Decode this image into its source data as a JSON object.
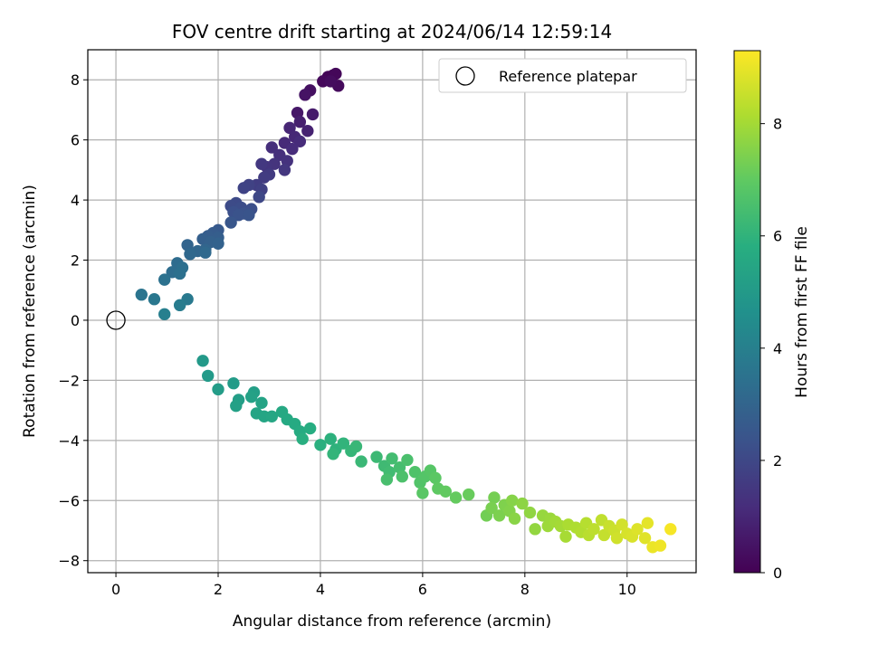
{
  "chart_data": {
    "type": "scatter",
    "title": "FOV centre drift starting at 2024/06/14 12:59:14",
    "xlabel": "Angular distance from reference (arcmin)",
    "ylabel": "Rotation from reference (arcmin)",
    "xlim": [
      -0.55,
      11.35
    ],
    "ylim": [
      -8.4,
      9.0
    ],
    "xticks": [
      0,
      2,
      4,
      6,
      8,
      10
    ],
    "yticks": [
      -8,
      -6,
      -4,
      -2,
      0,
      2,
      4,
      6,
      8
    ],
    "xtick_labels": [
      "0",
      "2",
      "4",
      "6",
      "8",
      "10"
    ],
    "ytick_labels": [
      "−8",
      "−6",
      "−4",
      "−2",
      "0",
      "2",
      "4",
      "6",
      "8"
    ],
    "grid": true,
    "legend": {
      "placement": "top-right",
      "entries": [
        {
          "label": "Reference platepar",
          "marker": "open-circle"
        }
      ]
    },
    "reference_point": {
      "x": 0,
      "y": 0
    },
    "colorbar": {
      "label": "Hours from first FF file",
      "colormap": "viridis",
      "range": [
        0,
        9.3
      ],
      "ticks": [
        0,
        2,
        4,
        6,
        8
      ],
      "tick_labels": [
        "0",
        "2",
        "4",
        "6",
        "8"
      ]
    },
    "series": [
      {
        "points": [
          {
            "x": 4.25,
            "y": 8.15,
            "t": 0.05
          },
          {
            "x": 4.15,
            "y": 8.1,
            "t": 0.1
          },
          {
            "x": 4.3,
            "y": 8.2,
            "t": 0.15
          },
          {
            "x": 4.05,
            "y": 7.95,
            "t": 0.2
          },
          {
            "x": 4.35,
            "y": 7.8,
            "t": 0.25
          },
          {
            "x": 4.2,
            "y": 7.95,
            "t": 0.3
          },
          {
            "x": 3.8,
            "y": 7.65,
            "t": 0.4
          },
          {
            "x": 3.7,
            "y": 7.5,
            "t": 0.5
          },
          {
            "x": 3.55,
            "y": 6.9,
            "t": 0.6
          },
          {
            "x": 3.85,
            "y": 6.85,
            "t": 0.7
          },
          {
            "x": 3.6,
            "y": 6.6,
            "t": 0.8
          },
          {
            "x": 3.75,
            "y": 6.3,
            "t": 0.9
          },
          {
            "x": 3.4,
            "y": 6.4,
            "t": 1.0
          },
          {
            "x": 3.5,
            "y": 6.1,
            "t": 1.05
          },
          {
            "x": 3.3,
            "y": 5.9,
            "t": 1.1
          },
          {
            "x": 3.6,
            "y": 5.95,
            "t": 1.15
          },
          {
            "x": 3.45,
            "y": 5.7,
            "t": 1.2
          },
          {
            "x": 3.05,
            "y": 5.75,
            "t": 1.25
          },
          {
            "x": 3.2,
            "y": 5.5,
            "t": 1.3
          },
          {
            "x": 3.35,
            "y": 5.3,
            "t": 1.35
          },
          {
            "x": 3.1,
            "y": 5.2,
            "t": 1.4
          },
          {
            "x": 2.95,
            "y": 5.1,
            "t": 1.45
          },
          {
            "x": 3.3,
            "y": 5.0,
            "t": 1.5
          },
          {
            "x": 2.85,
            "y": 5.2,
            "t": 1.55
          },
          {
            "x": 3.0,
            "y": 4.85,
            "t": 1.6
          },
          {
            "x": 2.9,
            "y": 4.75,
            "t": 1.65
          },
          {
            "x": 2.75,
            "y": 4.5,
            "t": 1.7
          },
          {
            "x": 2.85,
            "y": 4.35,
            "t": 1.8
          },
          {
            "x": 2.6,
            "y": 4.5,
            "t": 1.85
          },
          {
            "x": 2.5,
            "y": 4.4,
            "t": 1.9
          },
          {
            "x": 2.8,
            "y": 4.1,
            "t": 2.0
          },
          {
            "x": 2.35,
            "y": 3.9,
            "t": 2.1
          },
          {
            "x": 2.25,
            "y": 3.8,
            "t": 2.15
          },
          {
            "x": 2.45,
            "y": 3.75,
            "t": 2.2
          },
          {
            "x": 2.65,
            "y": 3.7,
            "t": 2.25
          },
          {
            "x": 2.3,
            "y": 3.6,
            "t": 2.3
          },
          {
            "x": 2.5,
            "y": 3.55,
            "t": 2.35
          },
          {
            "x": 2.4,
            "y": 3.5,
            "t": 2.4
          },
          {
            "x": 2.6,
            "y": 3.5,
            "t": 2.45
          },
          {
            "x": 2.25,
            "y": 3.25,
            "t": 2.5
          },
          {
            "x": 2.0,
            "y": 3.0,
            "t": 2.6
          },
          {
            "x": 1.9,
            "y": 2.9,
            "t": 2.7
          },
          {
            "x": 1.8,
            "y": 2.8,
            "t": 2.75
          },
          {
            "x": 2.0,
            "y": 2.75,
            "t": 2.8
          },
          {
            "x": 1.7,
            "y": 2.7,
            "t": 2.85
          },
          {
            "x": 1.85,
            "y": 2.6,
            "t": 2.9
          },
          {
            "x": 2.0,
            "y": 2.55,
            "t": 2.95
          },
          {
            "x": 1.4,
            "y": 2.5,
            "t": 3.0
          },
          {
            "x": 1.75,
            "y": 2.35,
            "t": 3.05
          },
          {
            "x": 1.6,
            "y": 2.3,
            "t": 3.1
          },
          {
            "x": 1.45,
            "y": 2.2,
            "t": 3.15
          },
          {
            "x": 1.75,
            "y": 2.25,
            "t": 3.2
          },
          {
            "x": 1.2,
            "y": 1.9,
            "t": 3.3
          },
          {
            "x": 1.1,
            "y": 1.6,
            "t": 3.35
          },
          {
            "x": 1.3,
            "y": 1.75,
            "t": 3.4
          },
          {
            "x": 1.25,
            "y": 1.55,
            "t": 3.45
          },
          {
            "x": 0.95,
            "y": 1.35,
            "t": 3.5
          },
          {
            "x": 0.5,
            "y": 0.85,
            "t": 3.6
          },
          {
            "x": 0.75,
            "y": 0.7,
            "t": 3.7
          },
          {
            "x": 1.4,
            "y": 0.7,
            "t": 3.8
          },
          {
            "x": 1.25,
            "y": 0.5,
            "t": 3.9
          },
          {
            "x": 0.95,
            "y": 0.2,
            "t": 4.0
          },
          {
            "x": 1.7,
            "y": -1.35,
            "t": 5.0
          },
          {
            "x": 1.8,
            "y": -1.85,
            "t": 5.05
          },
          {
            "x": 2.3,
            "y": -2.1,
            "t": 5.1
          },
          {
            "x": 2.0,
            "y": -2.3,
            "t": 5.15
          },
          {
            "x": 2.4,
            "y": -2.65,
            "t": 5.2
          },
          {
            "x": 2.7,
            "y": -2.4,
            "t": 5.25
          },
          {
            "x": 2.35,
            "y": -2.85,
            "t": 5.3
          },
          {
            "x": 2.65,
            "y": -2.55,
            "t": 5.35
          },
          {
            "x": 2.85,
            "y": -2.75,
            "t": 5.4
          },
          {
            "x": 2.75,
            "y": -3.1,
            "t": 5.45
          },
          {
            "x": 2.9,
            "y": -3.2,
            "t": 5.5
          },
          {
            "x": 3.05,
            "y": -3.2,
            "t": 5.55
          },
          {
            "x": 3.25,
            "y": -3.05,
            "t": 5.6
          },
          {
            "x": 3.35,
            "y": -3.3,
            "t": 5.65
          },
          {
            "x": 3.5,
            "y": -3.45,
            "t": 5.7
          },
          {
            "x": 3.6,
            "y": -3.7,
            "t": 5.75
          },
          {
            "x": 3.8,
            "y": -3.6,
            "t": 5.8
          },
          {
            "x": 3.65,
            "y": -3.95,
            "t": 5.85
          },
          {
            "x": 4.0,
            "y": -4.15,
            "t": 5.9
          },
          {
            "x": 4.2,
            "y": -3.95,
            "t": 5.95
          },
          {
            "x": 4.3,
            "y": -4.3,
            "t": 6.0
          },
          {
            "x": 4.45,
            "y": -4.1,
            "t": 6.05
          },
          {
            "x": 4.25,
            "y": -4.45,
            "t": 6.1
          },
          {
            "x": 4.6,
            "y": -4.35,
            "t": 6.15
          },
          {
            "x": 4.7,
            "y": -4.2,
            "t": 6.2
          },
          {
            "x": 4.8,
            "y": -4.7,
            "t": 6.25
          },
          {
            "x": 5.1,
            "y": -4.55,
            "t": 6.3
          },
          {
            "x": 5.25,
            "y": -4.85,
            "t": 6.35
          },
          {
            "x": 5.35,
            "y": -5.05,
            "t": 6.4
          },
          {
            "x": 5.4,
            "y": -4.6,
            "t": 6.45
          },
          {
            "x": 5.55,
            "y": -4.9,
            "t": 6.5
          },
          {
            "x": 5.3,
            "y": -5.3,
            "t": 6.55
          },
          {
            "x": 5.7,
            "y": -4.65,
            "t": 6.6
          },
          {
            "x": 5.6,
            "y": -5.2,
            "t": 6.65
          },
          {
            "x": 5.85,
            "y": -5.05,
            "t": 6.7
          },
          {
            "x": 5.95,
            "y": -5.4,
            "t": 6.75
          },
          {
            "x": 6.05,
            "y": -5.2,
            "t": 6.8
          },
          {
            "x": 6.15,
            "y": -5.0,
            "t": 6.85
          },
          {
            "x": 6.0,
            "y": -5.75,
            "t": 6.9
          },
          {
            "x": 6.25,
            "y": -5.25,
            "t": 6.95
          },
          {
            "x": 6.3,
            "y": -5.6,
            "t": 7.0
          },
          {
            "x": 6.45,
            "y": -5.7,
            "t": 7.05
          },
          {
            "x": 6.65,
            "y": -5.9,
            "t": 7.1
          },
          {
            "x": 6.9,
            "y": -5.8,
            "t": 7.15
          },
          {
            "x": 7.25,
            "y": -6.5,
            "t": 7.3
          },
          {
            "x": 7.4,
            "y": -5.9,
            "t": 7.35
          },
          {
            "x": 7.35,
            "y": -6.25,
            "t": 7.4
          },
          {
            "x": 7.5,
            "y": -6.5,
            "t": 7.45
          },
          {
            "x": 7.6,
            "y": -6.15,
            "t": 7.5
          },
          {
            "x": 7.7,
            "y": -6.35,
            "t": 7.55
          },
          {
            "x": 7.75,
            "y": -6.0,
            "t": 7.6
          },
          {
            "x": 7.8,
            "y": -6.6,
            "t": 7.65
          },
          {
            "x": 7.95,
            "y": -6.1,
            "t": 7.7
          },
          {
            "x": 8.1,
            "y": -6.4,
            "t": 7.75
          },
          {
            "x": 8.2,
            "y": -6.95,
            "t": 7.8
          },
          {
            "x": 8.35,
            "y": -6.5,
            "t": 7.85
          },
          {
            "x": 8.5,
            "y": -6.6,
            "t": 7.9
          },
          {
            "x": 8.45,
            "y": -6.85,
            "t": 7.95
          },
          {
            "x": 8.6,
            "y": -6.7,
            "t": 8.0
          },
          {
            "x": 8.7,
            "y": -6.85,
            "t": 8.05
          },
          {
            "x": 8.8,
            "y": -7.2,
            "t": 8.1
          },
          {
            "x": 8.85,
            "y": -6.8,
            "t": 8.15
          },
          {
            "x": 9.0,
            "y": -6.9,
            "t": 8.2
          },
          {
            "x": 9.1,
            "y": -7.05,
            "t": 8.25
          },
          {
            "x": 9.2,
            "y": -6.75,
            "t": 8.3
          },
          {
            "x": 9.25,
            "y": -7.15,
            "t": 8.35
          },
          {
            "x": 9.35,
            "y": -6.95,
            "t": 8.4
          },
          {
            "x": 9.5,
            "y": -6.65,
            "t": 8.45
          },
          {
            "x": 9.55,
            "y": -7.15,
            "t": 8.5
          },
          {
            "x": 9.65,
            "y": -6.85,
            "t": 8.55
          },
          {
            "x": 9.75,
            "y": -7.0,
            "t": 8.6
          },
          {
            "x": 9.8,
            "y": -7.25,
            "t": 8.65
          },
          {
            "x": 9.9,
            "y": -6.8,
            "t": 8.7
          },
          {
            "x": 10.0,
            "y": -7.1,
            "t": 8.75
          },
          {
            "x": 10.1,
            "y": -7.2,
            "t": 8.8
          },
          {
            "x": 10.2,
            "y": -6.95,
            "t": 8.85
          },
          {
            "x": 10.35,
            "y": -7.25,
            "t": 8.9
          },
          {
            "x": 10.4,
            "y": -6.75,
            "t": 8.95
          },
          {
            "x": 10.5,
            "y": -7.55,
            "t": 9.05
          },
          {
            "x": 10.65,
            "y": -7.5,
            "t": 9.1
          },
          {
            "x": 10.85,
            "y": -6.95,
            "t": 9.2
          }
        ]
      }
    ]
  }
}
